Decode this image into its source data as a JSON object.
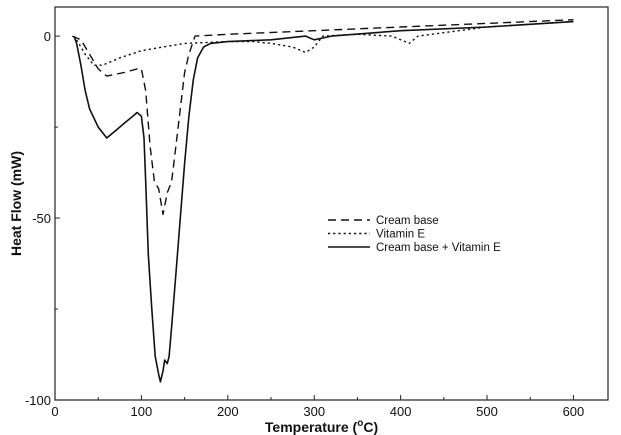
{
  "chart_data": {
    "type": "line",
    "title": "",
    "xlabel": "Temperature (°C)",
    "xlabel_main": "Temperature (",
    "xlabel_sup": "o",
    "xlabel_end": "C)",
    "ylabel": "Heat Flow (mW)",
    "xlim": [
      0,
      640
    ],
    "ylim": [
      -100,
      8
    ],
    "x_ticks": [
      0,
      100,
      200,
      300,
      400,
      500,
      600
    ],
    "x_tick_labels": [
      "0",
      "100",
      "200",
      "300",
      "400",
      "500",
      "600"
    ],
    "y_ticks": [
      0,
      -50,
      -100
    ],
    "y_tick_labels": [
      "0",
      "-50",
      "-100"
    ],
    "grid": false,
    "legend_position": "center-right",
    "series": [
      {
        "name": "Cream base",
        "style": "dashed",
        "points": [
          [
            20,
            0
          ],
          [
            30,
            -1
          ],
          [
            40,
            -5
          ],
          [
            50,
            -9
          ],
          [
            60,
            -11
          ],
          [
            80,
            -10
          ],
          [
            95,
            -9
          ],
          [
            100,
            -9
          ],
          [
            105,
            -15
          ],
          [
            110,
            -30
          ],
          [
            115,
            -40
          ],
          [
            120,
            -42
          ],
          [
            125,
            -49
          ],
          [
            130,
            -43
          ],
          [
            135,
            -40
          ],
          [
            140,
            -30
          ],
          [
            145,
            -20
          ],
          [
            150,
            -10
          ],
          [
            155,
            -5
          ],
          [
            162,
            0
          ],
          [
            200,
            0.5
          ],
          [
            300,
            1.5
          ],
          [
            400,
            2.5
          ],
          [
            500,
            3.5
          ],
          [
            600,
            4.5
          ]
        ]
      },
      {
        "name": "Vitamin E",
        "style": "dotted",
        "points": [
          [
            25,
            -1
          ],
          [
            35,
            -5
          ],
          [
            45,
            -8
          ],
          [
            55,
            -8
          ],
          [
            75,
            -6
          ],
          [
            100,
            -4
          ],
          [
            150,
            -2
          ],
          [
            200,
            -1.5
          ],
          [
            230,
            -1.5
          ],
          [
            250,
            -2
          ],
          [
            275,
            -3
          ],
          [
            290,
            -4.5
          ],
          [
            300,
            -3
          ],
          [
            310,
            0
          ],
          [
            350,
            0.5
          ],
          [
            390,
            0
          ],
          [
            410,
            -2
          ],
          [
            420,
            0
          ],
          [
            500,
            2.5
          ],
          [
            600,
            4
          ]
        ]
      },
      {
        "name": "Cream base + Vitamin E",
        "style": "solid",
        "points": [
          [
            22,
            0
          ],
          [
            25,
            -2
          ],
          [
            30,
            -8
          ],
          [
            35,
            -15
          ],
          [
            40,
            -20
          ],
          [
            50,
            -25
          ],
          [
            60,
            -28
          ],
          [
            70,
            -26
          ],
          [
            80,
            -24
          ],
          [
            90,
            -22
          ],
          [
            95,
            -21
          ],
          [
            100,
            -22
          ],
          [
            103,
            -28
          ],
          [
            105,
            -40
          ],
          [
            108,
            -60
          ],
          [
            112,
            -75
          ],
          [
            116,
            -88
          ],
          [
            120,
            -93
          ],
          [
            122,
            -95
          ],
          [
            125,
            -92
          ],
          [
            127,
            -89
          ],
          [
            130,
            -90
          ],
          [
            132,
            -88
          ],
          [
            135,
            -80
          ],
          [
            140,
            -65
          ],
          [
            145,
            -50
          ],
          [
            150,
            -35
          ],
          [
            155,
            -22
          ],
          [
            160,
            -12
          ],
          [
            165,
            -6
          ],
          [
            172,
            -3
          ],
          [
            180,
            -2
          ],
          [
            200,
            -1.5
          ],
          [
            250,
            -1
          ],
          [
            290,
            0
          ],
          [
            300,
            -1
          ],
          [
            320,
            0
          ],
          [
            400,
            1.5
          ],
          [
            500,
            2.5
          ],
          [
            600,
            4
          ]
        ]
      }
    ]
  }
}
